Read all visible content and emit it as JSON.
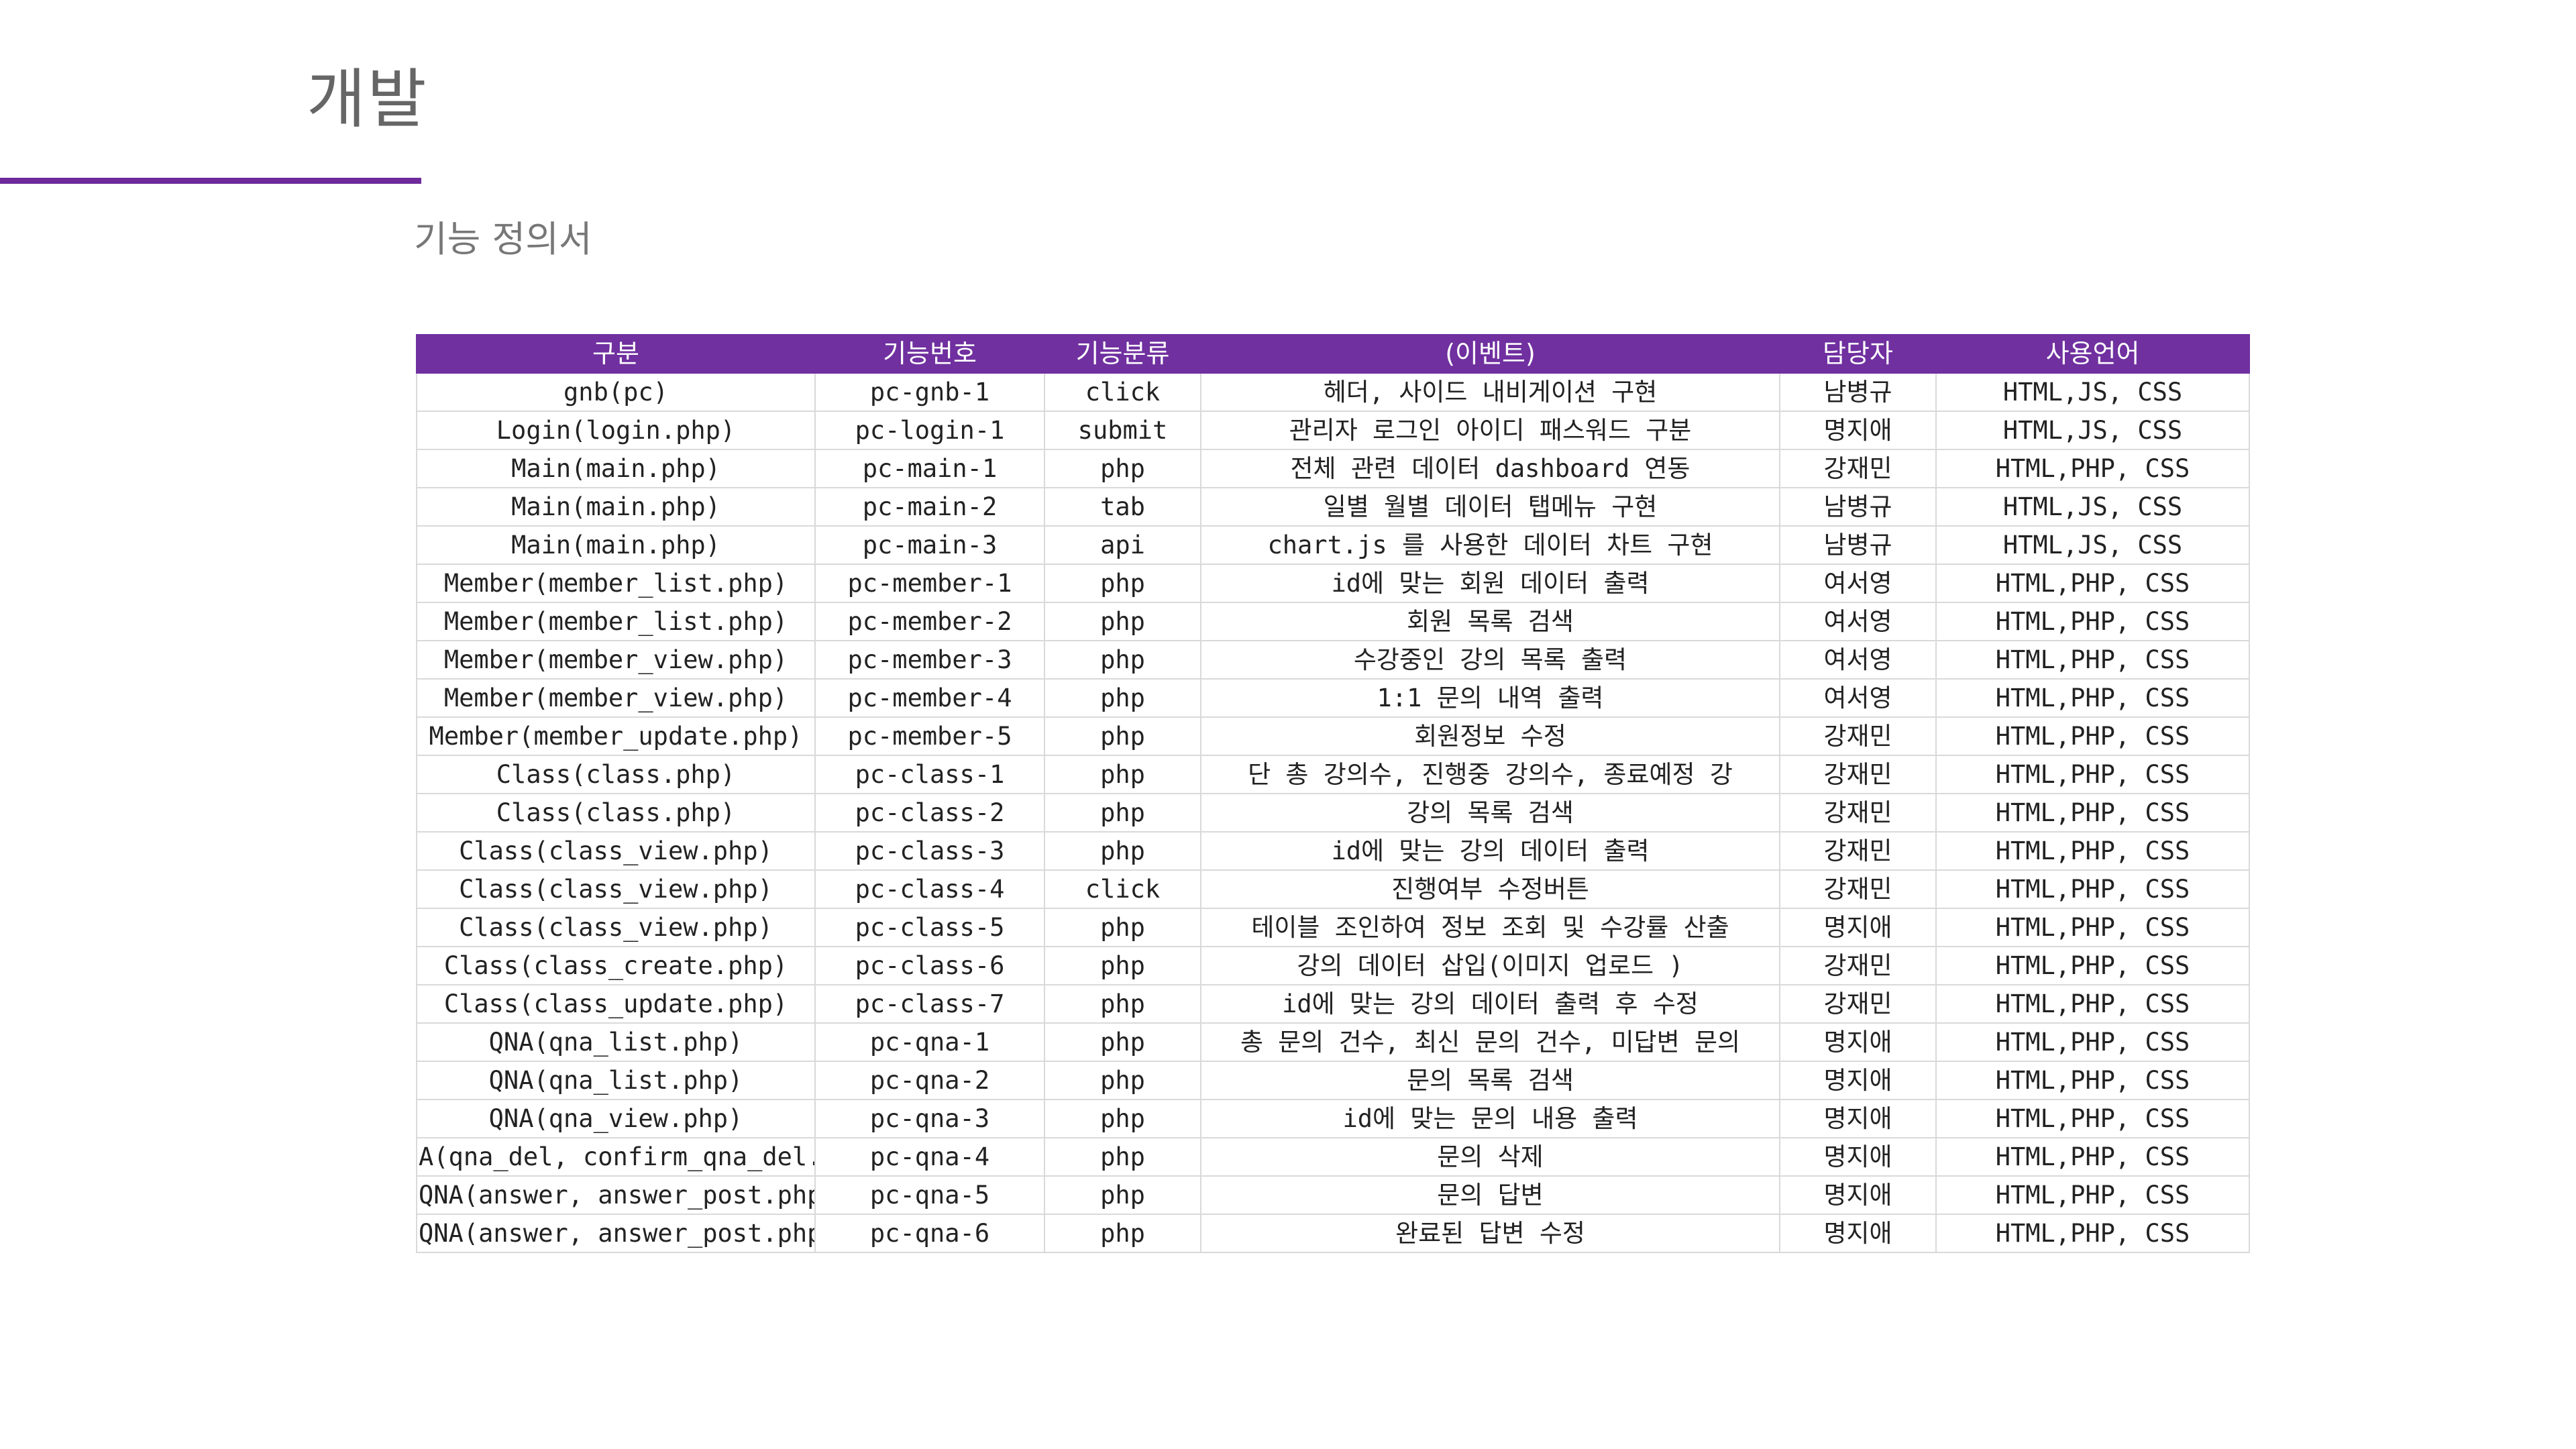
{
  "page": {
    "title": "개발",
    "subtitle": "기능 정의서"
  },
  "colors": {
    "accent": "#7030a0",
    "title_rule": "#6e2a9a",
    "grid": "#d9d9d9"
  },
  "table": {
    "headers": [
      "구분",
      "기능번호",
      "기능분류",
      "(이벤트)",
      "담당자",
      "사용언어"
    ],
    "rows": [
      [
        "gnb(pc)",
        "pc-gnb-1",
        "click",
        "헤더, 사이드 내비게이션   구현",
        "남병규",
        "HTML,JS, CSS"
      ],
      [
        "Login(login.php)",
        "pc-login-1",
        "submit",
        "관리자 로그인 아이디 패스워드 구분",
        "명지애",
        "HTML,JS, CSS"
      ],
      [
        "Main(main.php)",
        "pc-main-1",
        "php",
        "전체 관련 데이터 dashboard 연동",
        "강재민",
        "HTML,PHP, CSS"
      ],
      [
        "Main(main.php)",
        "pc-main-2",
        "tab",
        "일별 월별 데이터 탭메뉴 구현",
        "남병규",
        "HTML,JS, CSS"
      ],
      [
        "Main(main.php)",
        "pc-main-3",
        "api",
        "chart.js 를 사용한 데이터 차트 구현",
        "남병규",
        "HTML,JS, CSS"
      ],
      [
        "Member(member_list.php)",
        "pc-member-1",
        "php",
        "id에 맞는 회원 데이터 출력",
        "여서영",
        "HTML,PHP, CSS"
      ],
      [
        "Member(member_list.php)",
        "pc-member-2",
        "php",
        "회원 목록 검색",
        "여서영",
        "HTML,PHP, CSS"
      ],
      [
        "Member(member_view.php)",
        "pc-member-3",
        "php",
        "수강중인 강의 목록 출력",
        "여서영",
        "HTML,PHP, CSS"
      ],
      [
        "Member(member_view.php)",
        "pc-member-4",
        "php",
        "1:1 문의 내역 출력",
        "여서영",
        "HTML,PHP, CSS"
      ],
      [
        "Member(member_update.php)",
        "pc-member-5",
        "php",
        "회원정보 수정",
        "강재민",
        "HTML,PHP, CSS"
      ],
      [
        "Class(class.php)",
        "pc-class-1",
        "php",
        "단 총 강의수, 진행중 강의수, 종료예정 강",
        "강재민",
        "HTML,PHP, CSS"
      ],
      [
        "Class(class.php)",
        "pc-class-2",
        "php",
        "강의 목록 검색",
        "강재민",
        "HTML,PHP, CSS"
      ],
      [
        "Class(class_view.php)",
        "pc-class-3",
        "php",
        "id에 맞는 강의 데이터 출력",
        "강재민",
        "HTML,PHP, CSS"
      ],
      [
        "Class(class_view.php)",
        "pc-class-4",
        "click",
        "진행여부 수정버튼",
        "강재민",
        "HTML,PHP, CSS"
      ],
      [
        "Class(class_view.php)",
        "pc-class-5",
        "php",
        "테이블 조인하여 정보 조회 및 수강률 산출",
        "명지애",
        "HTML,PHP, CSS"
      ],
      [
        "Class(class_create.php)",
        "pc-class-6",
        "php",
        "강의 데이터 삽입(이미지 업로드 )",
        "강재민",
        "HTML,PHP, CSS"
      ],
      [
        "Class(class_update.php)",
        "pc-class-7",
        "php",
        "id에 맞는 강의 데이터 출력 후 수정",
        "강재민",
        "HTML,PHP, CSS"
      ],
      [
        "QNA(qna_list.php)",
        "pc-qna-1",
        "php",
        "총 문의 건수, 최신 문의 건수, 미답변 문의",
        "명지애",
        "HTML,PHP, CSS"
      ],
      [
        "QNA(qna_list.php)",
        "pc-qna-2",
        "php",
        "문의 목록 검색",
        "명지애",
        "HTML,PHP, CSS"
      ],
      [
        "QNA(qna_view.php)",
        "pc-qna-3",
        "php",
        "id에 맞는 문의 내용 출력",
        "명지애",
        "HTML,PHP, CSS"
      ],
      [
        "A(qna_del, confirm_qna_del.ph",
        "pc-qna-4",
        "php",
        "문의 삭제",
        "명지애",
        "HTML,PHP, CSS"
      ],
      [
        "QNA(answer, answer_post.php)",
        "pc-qna-5",
        "php",
        "문의 답변",
        "명지애",
        "HTML,PHP, CSS"
      ],
      [
        "QNA(answer, answer_post.php)",
        "pc-qna-6",
        "php",
        "완료된 답변 수정",
        "명지애",
        "HTML,PHP, CSS"
      ]
    ]
  }
}
